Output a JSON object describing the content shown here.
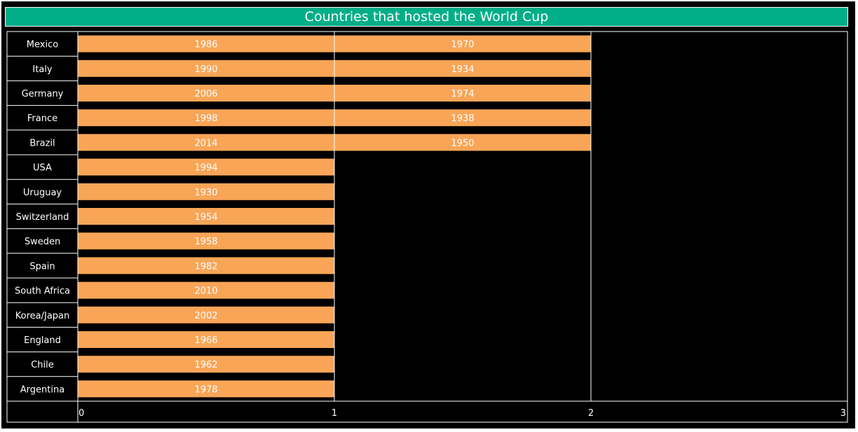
{
  "chart_data": {
    "type": "bar",
    "orientation": "horizontal",
    "stacked": true,
    "title": "Countries that hosted the World Cup",
    "xlabel": "",
    "ylabel": "",
    "xlim": [
      0,
      3
    ],
    "x_ticks": [
      "0",
      "1",
      "2",
      "3"
    ],
    "categories": [
      "Mexico",
      "Italy",
      "Germany",
      "France",
      "Brazil",
      "USA",
      "Uruguay",
      "Switzerland",
      "Sweden",
      "Spain",
      "South Africa",
      "Korea/Japan",
      "England",
      "Chile",
      "Argentina"
    ],
    "segments": [
      [
        "1986",
        "1970"
      ],
      [
        "1990",
        "1934"
      ],
      [
        "2006",
        "1974"
      ],
      [
        "1998",
        "1938"
      ],
      [
        "2014",
        "1950"
      ],
      [
        "1994"
      ],
      [
        "1930"
      ],
      [
        "1954"
      ],
      [
        "1958"
      ],
      [
        "1982"
      ],
      [
        "2010"
      ],
      [
        "2002"
      ],
      [
        "1966"
      ],
      [
        "1962"
      ],
      [
        "1978"
      ]
    ],
    "values": [
      2,
      2,
      2,
      2,
      2,
      1,
      1,
      1,
      1,
      1,
      1,
      1,
      1,
      1,
      1
    ],
    "colors": {
      "bar": "#f9a557",
      "background": "#000000",
      "title_bg": "#00ae87",
      "text": "#ffffff"
    }
  }
}
